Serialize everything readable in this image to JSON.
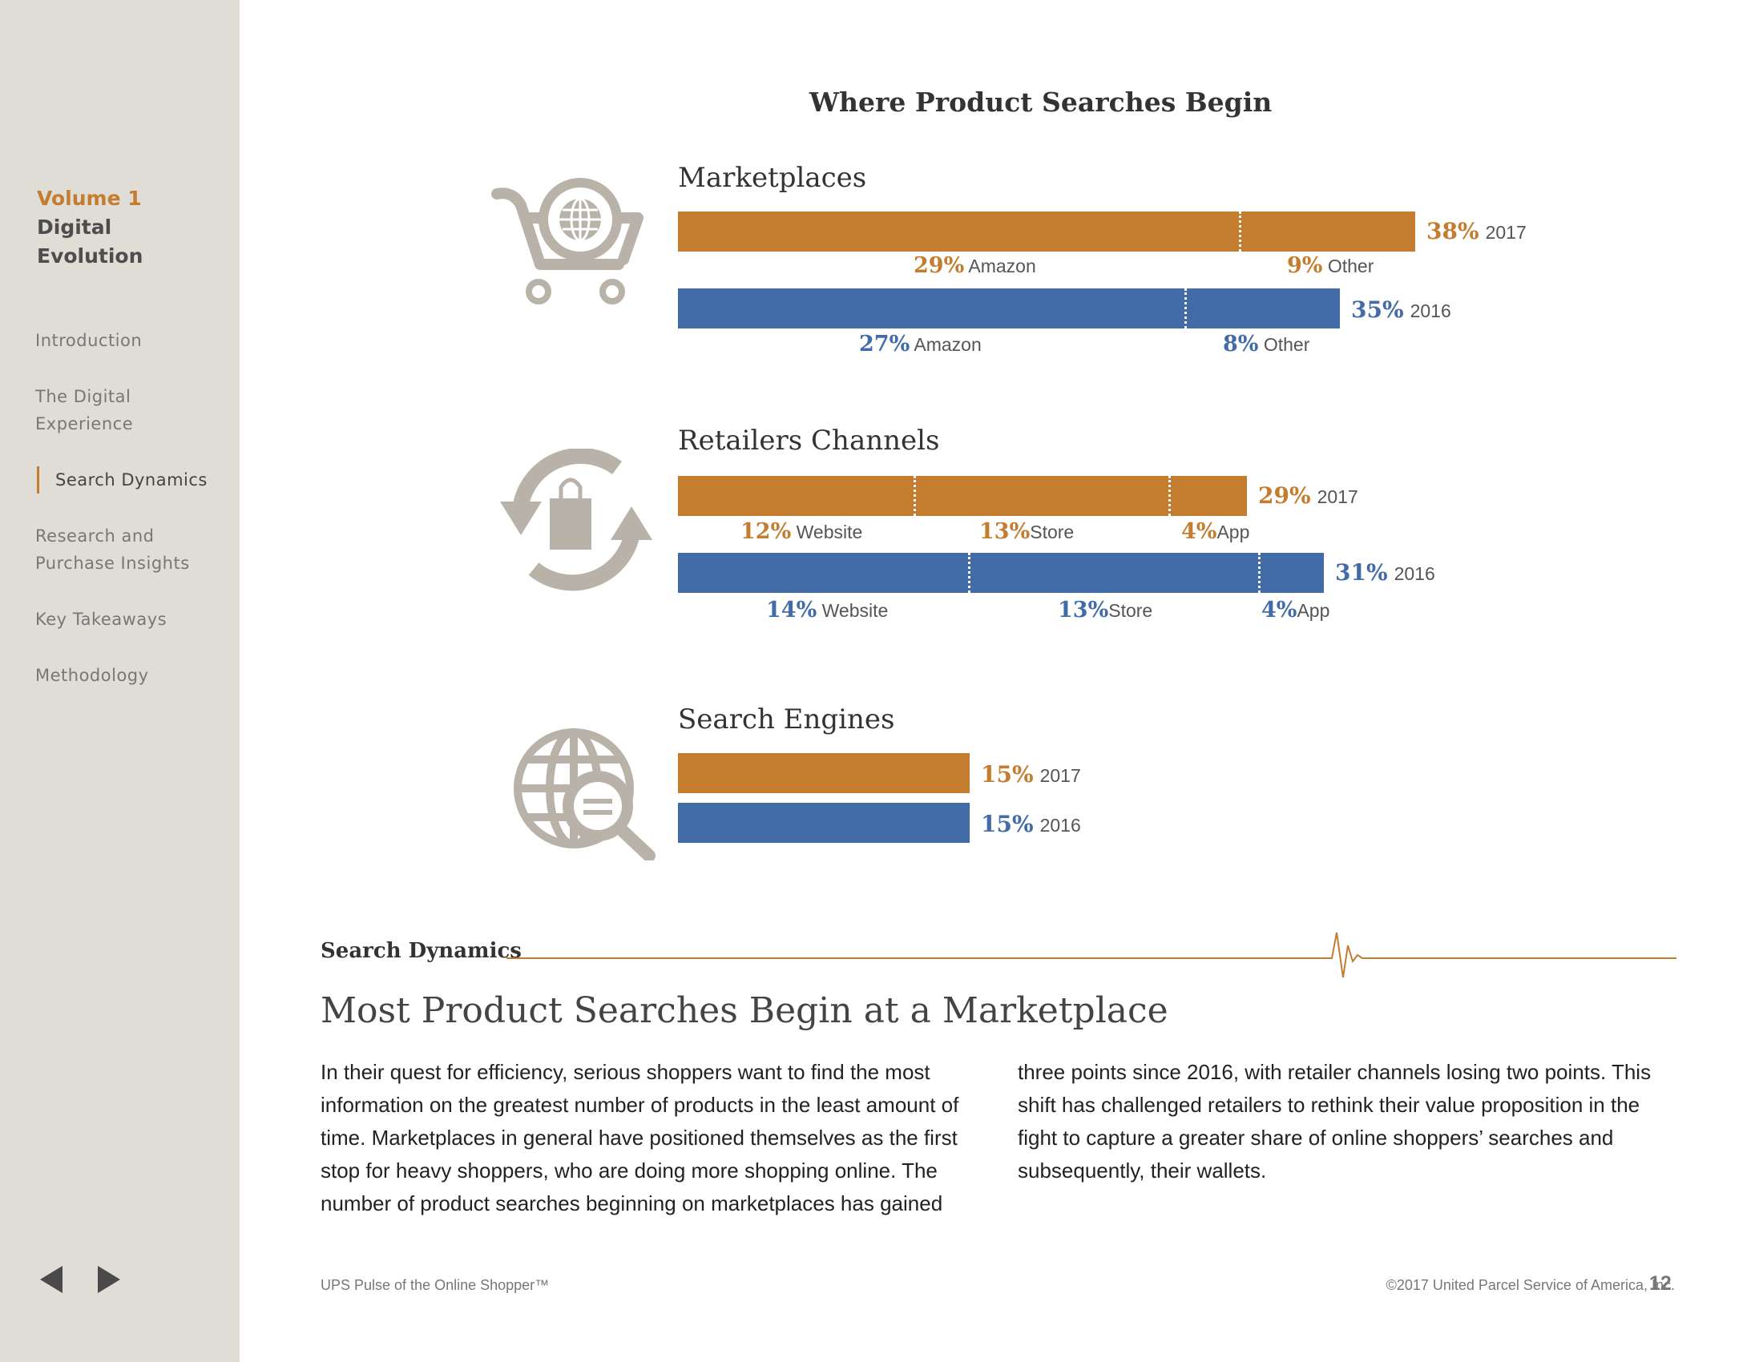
{
  "sidebar": {
    "volume": "Volume 1",
    "title_line1": "Digital",
    "title_line2": "Evolution",
    "nav": [
      {
        "line1": "Introduction",
        "line2": ""
      },
      {
        "line1": "The Digital",
        "line2": "Experience"
      },
      {
        "line1": "Search Dynamics",
        "line2": ""
      },
      {
        "line1": "Research and",
        "line2": "Purchase Insights"
      },
      {
        "line1": "Key Takeaways",
        "line2": ""
      },
      {
        "line1": "Methodology",
        "line2": ""
      }
    ]
  },
  "chart": {
    "title": "Where Product Searches Begin",
    "sections": [
      {
        "name": "Marketplaces",
        "rows": [
          {
            "year": "2017",
            "total": "38%",
            "segments": [
              {
                "pct": "29%",
                "label": "Amazon"
              },
              {
                "pct": "9%",
                "label": "Other"
              }
            ]
          },
          {
            "year": "2016",
            "total": "35%",
            "segments": [
              {
                "pct": "27%",
                "label": "Amazon"
              },
              {
                "pct": "8%",
                "label": "Other"
              }
            ]
          }
        ]
      },
      {
        "name": "Retailers Channels",
        "rows": [
          {
            "year": "2017",
            "total": "29%",
            "segments": [
              {
                "pct": "12%",
                "label": "Website"
              },
              {
                "pct": "13%",
                "label": "Store"
              },
              {
                "pct": "4%",
                "label": "App"
              }
            ]
          },
          {
            "year": "2016",
            "total": "31%",
            "segments": [
              {
                "pct": "14%",
                "label": "Website"
              },
              {
                "pct": "13%",
                "label": "Store"
              },
              {
                "pct": "4%",
                "label": "App"
              }
            ]
          }
        ]
      },
      {
        "name": "Search Engines",
        "rows": [
          {
            "year": "2017",
            "total": "15%",
            "segments": []
          },
          {
            "year": "2016",
            "total": "15%",
            "segments": []
          }
        ]
      }
    ]
  },
  "chart_data": {
    "type": "bar",
    "title": "Where Product Searches Begin",
    "categories": [
      "Marketplaces",
      "Retailers Channels",
      "Search Engines"
    ],
    "series": [
      {
        "name": "2017",
        "values": [
          38,
          29,
          15
        ],
        "color": "#c47c2e",
        "breakdown": {
          "Marketplaces": {
            "Amazon": 29,
            "Other": 9
          },
          "Retailers Channels": {
            "Website": 12,
            "Store": 13,
            "App": 4
          }
        }
      },
      {
        "name": "2016",
        "values": [
          35,
          31,
          15
        ],
        "color": "#426ca8",
        "breakdown": {
          "Marketplaces": {
            "Amazon": 27,
            "Other": 8
          },
          "Retailers Channels": {
            "Website": 14,
            "Store": 13,
            "App": 4
          }
        }
      }
    ],
    "orientation": "horizontal",
    "stacked": true
  },
  "section_label": "Search Dynamics",
  "heading": "Most Product Searches Begin at a Marketplace",
  "body_left": "In their quest for efficiency, serious shoppers want to find the most information on the greatest number of products in the least amount of time. Marketplaces in general have positioned themselves as the first stop for heavy shoppers, who are doing more shopping online. The number of product searches beginning on marketplaces has gained",
  "body_right": "three points since 2016, with retailer channels losing two points. This shift has challenged retailers to rethink their value proposition in the fight to capture a greater share of online shoppers’ searches and subsequently, their wallets.",
  "footer": {
    "left": "UPS Pulse of the Online Shopper™",
    "right": "©2017 United Parcel Service of America, Inc.",
    "page": "12"
  },
  "colors": {
    "orange": "#c47c2e",
    "blue": "#426ca8",
    "sidebar": "#e0ddd7",
    "icon": "#b8b2a8"
  }
}
